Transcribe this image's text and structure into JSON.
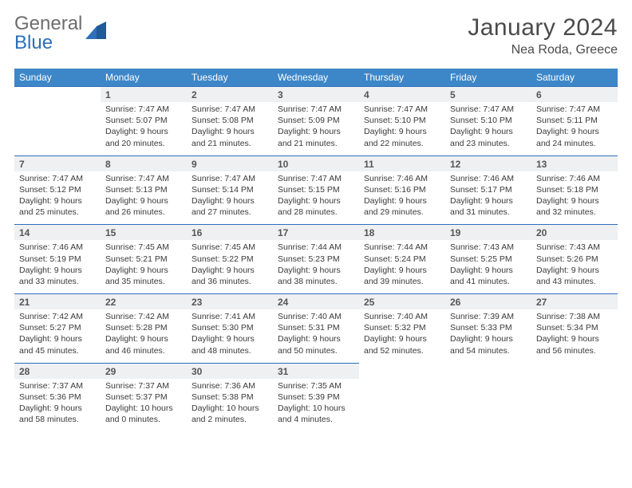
{
  "brand": {
    "general": "General",
    "blue": "Blue"
  },
  "title": "January 2024",
  "location": "Nea Roda, Greece",
  "colors": {
    "header_bg": "#3d87c9",
    "header_text": "#ffffff",
    "num_bg": "#eef0f2",
    "rule": "#2d6fb8",
    "logo_gray": "#6d6d6d",
    "logo_blue": "#2d6fb8"
  },
  "day_names": [
    "Sunday",
    "Monday",
    "Tuesday",
    "Wednesday",
    "Thursday",
    "Friday",
    "Saturday"
  ],
  "weeks": [
    {
      "nums": [
        "",
        "1",
        "2",
        "3",
        "4",
        "5",
        "6"
      ],
      "cells": [
        null,
        {
          "sunrise": "Sunrise: 7:47 AM",
          "sunset": "Sunset: 5:07 PM",
          "dl1": "Daylight: 9 hours",
          "dl2": "and 20 minutes."
        },
        {
          "sunrise": "Sunrise: 7:47 AM",
          "sunset": "Sunset: 5:08 PM",
          "dl1": "Daylight: 9 hours",
          "dl2": "and 21 minutes."
        },
        {
          "sunrise": "Sunrise: 7:47 AM",
          "sunset": "Sunset: 5:09 PM",
          "dl1": "Daylight: 9 hours",
          "dl2": "and 21 minutes."
        },
        {
          "sunrise": "Sunrise: 7:47 AM",
          "sunset": "Sunset: 5:10 PM",
          "dl1": "Daylight: 9 hours",
          "dl2": "and 22 minutes."
        },
        {
          "sunrise": "Sunrise: 7:47 AM",
          "sunset": "Sunset: 5:10 PM",
          "dl1": "Daylight: 9 hours",
          "dl2": "and 23 minutes."
        },
        {
          "sunrise": "Sunrise: 7:47 AM",
          "sunset": "Sunset: 5:11 PM",
          "dl1": "Daylight: 9 hours",
          "dl2": "and 24 minutes."
        }
      ]
    },
    {
      "nums": [
        "7",
        "8",
        "9",
        "10",
        "11",
        "12",
        "13"
      ],
      "cells": [
        {
          "sunrise": "Sunrise: 7:47 AM",
          "sunset": "Sunset: 5:12 PM",
          "dl1": "Daylight: 9 hours",
          "dl2": "and 25 minutes."
        },
        {
          "sunrise": "Sunrise: 7:47 AM",
          "sunset": "Sunset: 5:13 PM",
          "dl1": "Daylight: 9 hours",
          "dl2": "and 26 minutes."
        },
        {
          "sunrise": "Sunrise: 7:47 AM",
          "sunset": "Sunset: 5:14 PM",
          "dl1": "Daylight: 9 hours",
          "dl2": "and 27 minutes."
        },
        {
          "sunrise": "Sunrise: 7:47 AM",
          "sunset": "Sunset: 5:15 PM",
          "dl1": "Daylight: 9 hours",
          "dl2": "and 28 minutes."
        },
        {
          "sunrise": "Sunrise: 7:46 AM",
          "sunset": "Sunset: 5:16 PM",
          "dl1": "Daylight: 9 hours",
          "dl2": "and 29 minutes."
        },
        {
          "sunrise": "Sunrise: 7:46 AM",
          "sunset": "Sunset: 5:17 PM",
          "dl1": "Daylight: 9 hours",
          "dl2": "and 31 minutes."
        },
        {
          "sunrise": "Sunrise: 7:46 AM",
          "sunset": "Sunset: 5:18 PM",
          "dl1": "Daylight: 9 hours",
          "dl2": "and 32 minutes."
        }
      ]
    },
    {
      "nums": [
        "14",
        "15",
        "16",
        "17",
        "18",
        "19",
        "20"
      ],
      "cells": [
        {
          "sunrise": "Sunrise: 7:46 AM",
          "sunset": "Sunset: 5:19 PM",
          "dl1": "Daylight: 9 hours",
          "dl2": "and 33 minutes."
        },
        {
          "sunrise": "Sunrise: 7:45 AM",
          "sunset": "Sunset: 5:21 PM",
          "dl1": "Daylight: 9 hours",
          "dl2": "and 35 minutes."
        },
        {
          "sunrise": "Sunrise: 7:45 AM",
          "sunset": "Sunset: 5:22 PM",
          "dl1": "Daylight: 9 hours",
          "dl2": "and 36 minutes."
        },
        {
          "sunrise": "Sunrise: 7:44 AM",
          "sunset": "Sunset: 5:23 PM",
          "dl1": "Daylight: 9 hours",
          "dl2": "and 38 minutes."
        },
        {
          "sunrise": "Sunrise: 7:44 AM",
          "sunset": "Sunset: 5:24 PM",
          "dl1": "Daylight: 9 hours",
          "dl2": "and 39 minutes."
        },
        {
          "sunrise": "Sunrise: 7:43 AM",
          "sunset": "Sunset: 5:25 PM",
          "dl1": "Daylight: 9 hours",
          "dl2": "and 41 minutes."
        },
        {
          "sunrise": "Sunrise: 7:43 AM",
          "sunset": "Sunset: 5:26 PM",
          "dl1": "Daylight: 9 hours",
          "dl2": "and 43 minutes."
        }
      ]
    },
    {
      "nums": [
        "21",
        "22",
        "23",
        "24",
        "25",
        "26",
        "27"
      ],
      "cells": [
        {
          "sunrise": "Sunrise: 7:42 AM",
          "sunset": "Sunset: 5:27 PM",
          "dl1": "Daylight: 9 hours",
          "dl2": "and 45 minutes."
        },
        {
          "sunrise": "Sunrise: 7:42 AM",
          "sunset": "Sunset: 5:28 PM",
          "dl1": "Daylight: 9 hours",
          "dl2": "and 46 minutes."
        },
        {
          "sunrise": "Sunrise: 7:41 AM",
          "sunset": "Sunset: 5:30 PM",
          "dl1": "Daylight: 9 hours",
          "dl2": "and 48 minutes."
        },
        {
          "sunrise": "Sunrise: 7:40 AM",
          "sunset": "Sunset: 5:31 PM",
          "dl1": "Daylight: 9 hours",
          "dl2": "and 50 minutes."
        },
        {
          "sunrise": "Sunrise: 7:40 AM",
          "sunset": "Sunset: 5:32 PM",
          "dl1": "Daylight: 9 hours",
          "dl2": "and 52 minutes."
        },
        {
          "sunrise": "Sunrise: 7:39 AM",
          "sunset": "Sunset: 5:33 PM",
          "dl1": "Daylight: 9 hours",
          "dl2": "and 54 minutes."
        },
        {
          "sunrise": "Sunrise: 7:38 AM",
          "sunset": "Sunset: 5:34 PM",
          "dl1": "Daylight: 9 hours",
          "dl2": "and 56 minutes."
        }
      ]
    },
    {
      "nums": [
        "28",
        "29",
        "30",
        "31",
        "",
        "",
        ""
      ],
      "cells": [
        {
          "sunrise": "Sunrise: 7:37 AM",
          "sunset": "Sunset: 5:36 PM",
          "dl1": "Daylight: 9 hours",
          "dl2": "and 58 minutes."
        },
        {
          "sunrise": "Sunrise: 7:37 AM",
          "sunset": "Sunset: 5:37 PM",
          "dl1": "Daylight: 10 hours",
          "dl2": "and 0 minutes."
        },
        {
          "sunrise": "Sunrise: 7:36 AM",
          "sunset": "Sunset: 5:38 PM",
          "dl1": "Daylight: 10 hours",
          "dl2": "and 2 minutes."
        },
        {
          "sunrise": "Sunrise: 7:35 AM",
          "sunset": "Sunset: 5:39 PM",
          "dl1": "Daylight: 10 hours",
          "dl2": "and 4 minutes."
        },
        null,
        null,
        null
      ]
    }
  ]
}
